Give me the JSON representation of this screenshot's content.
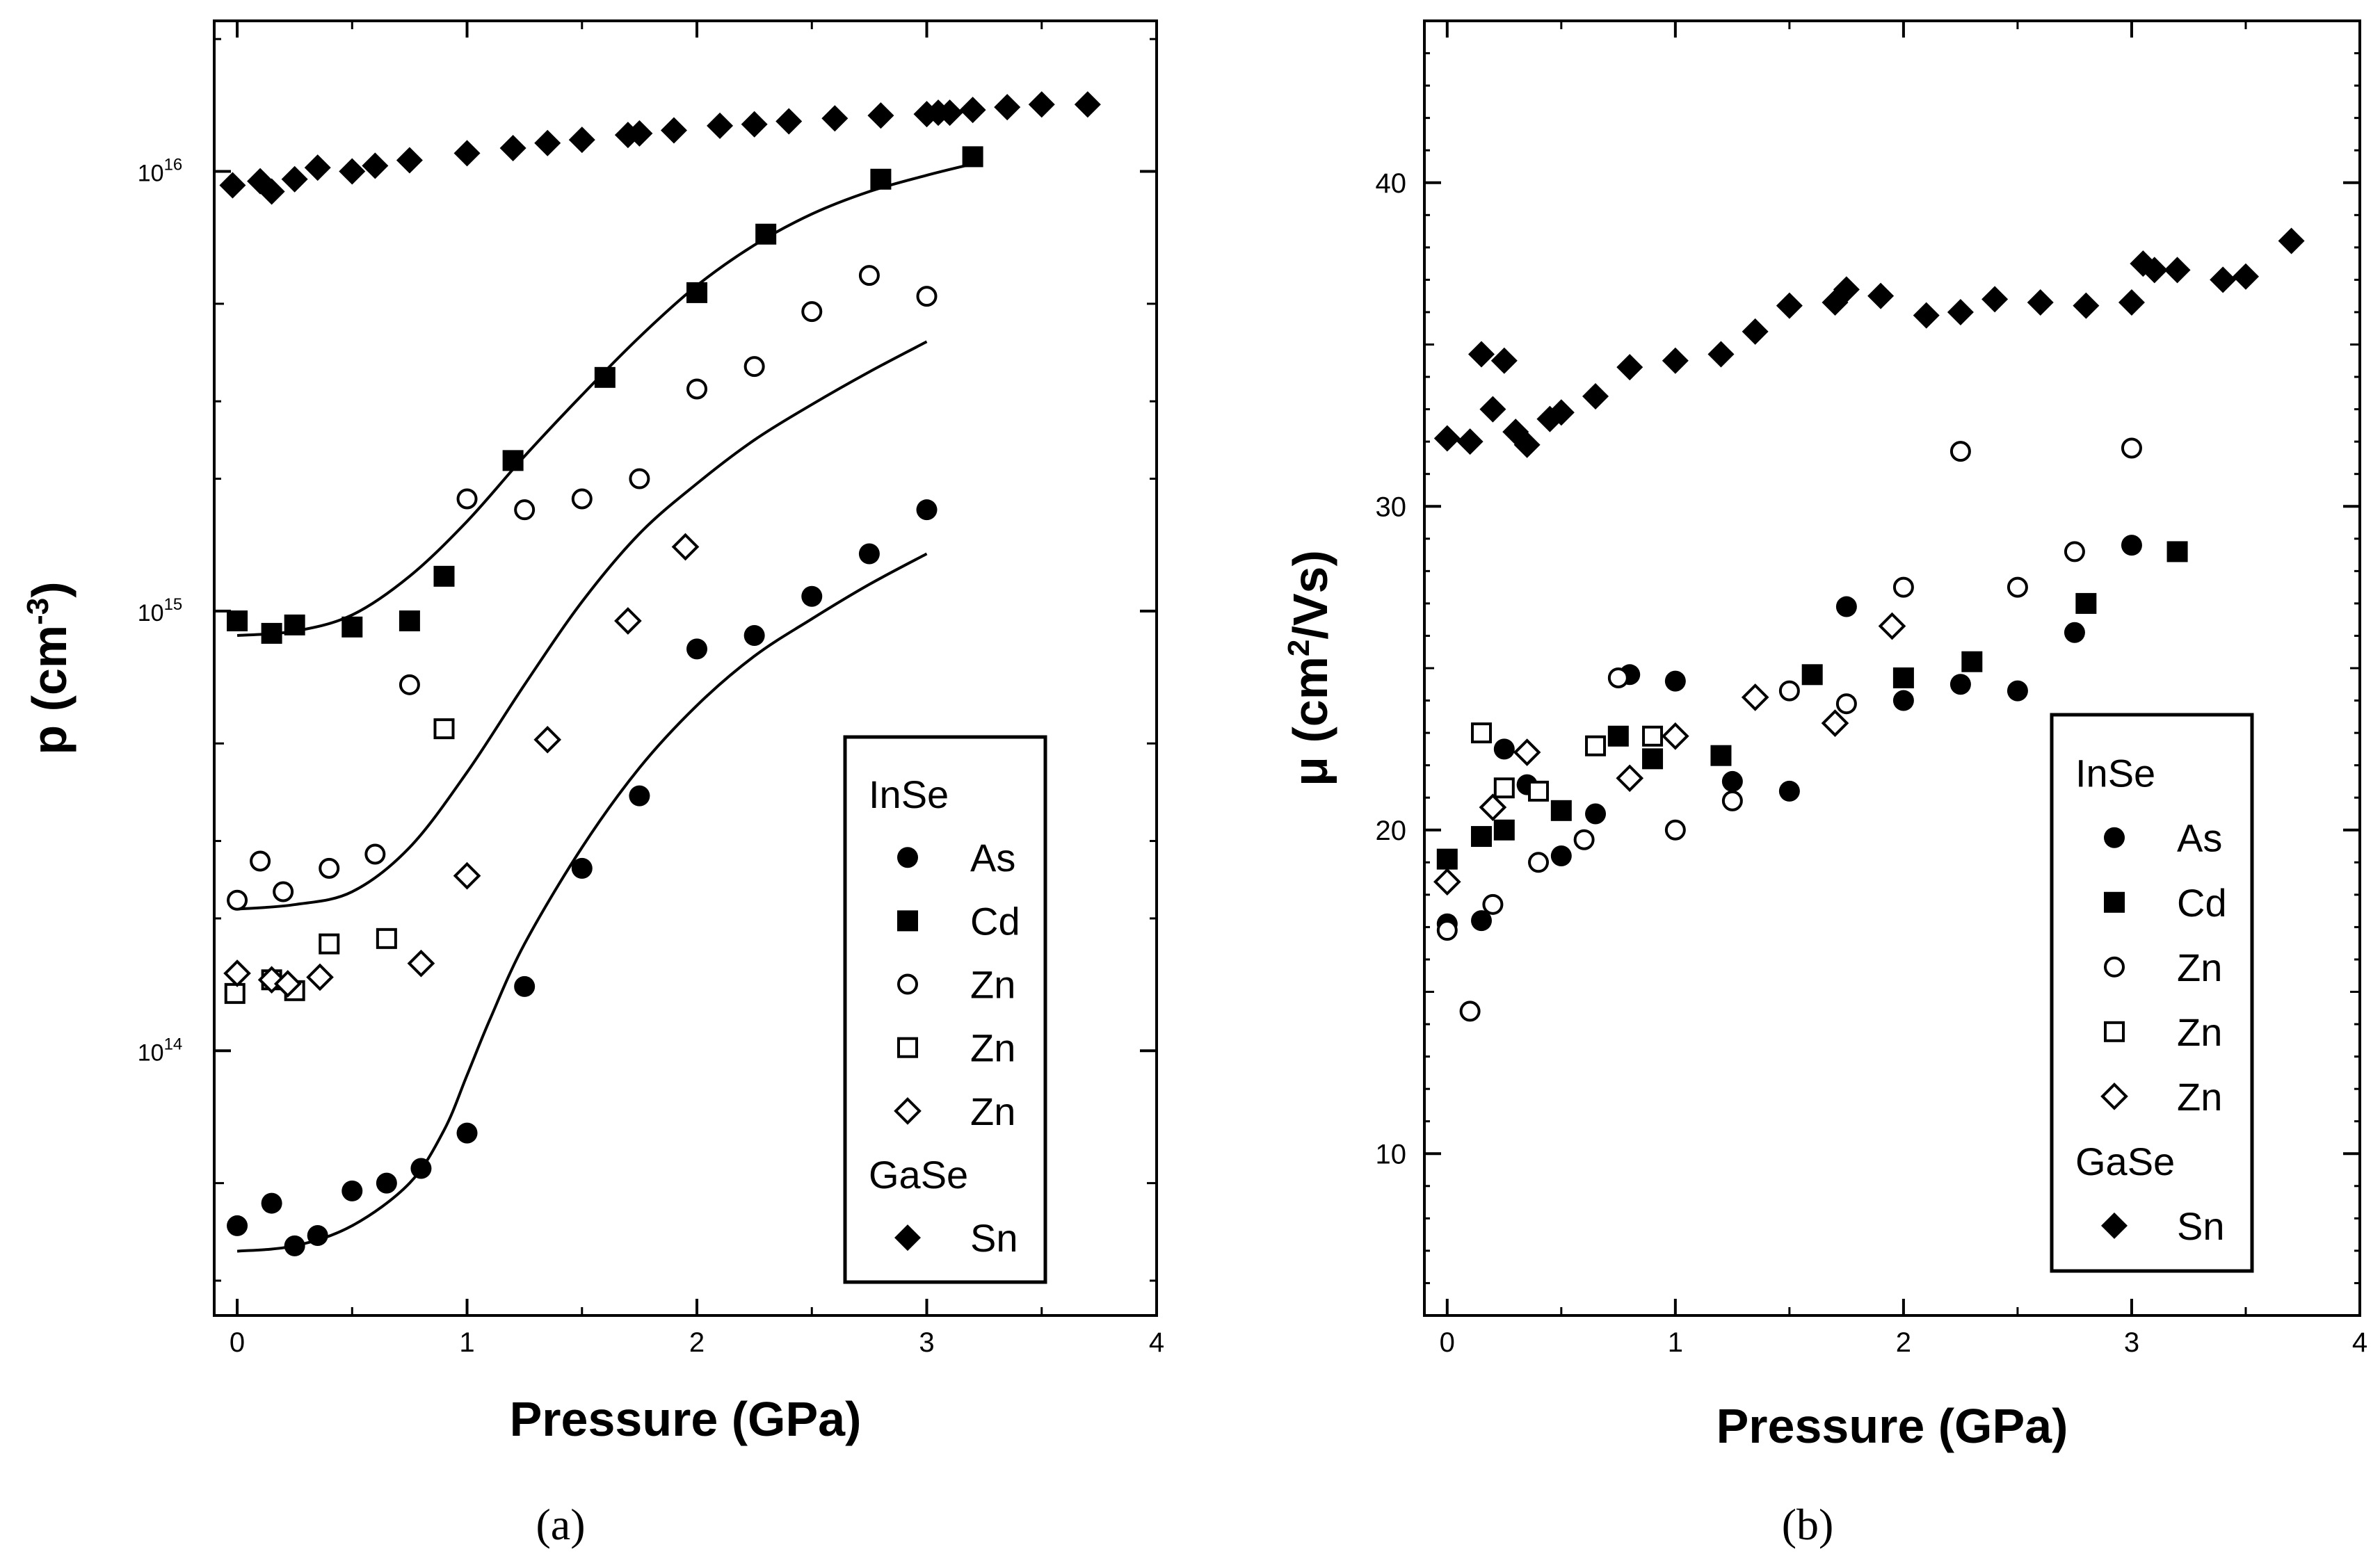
{
  "chart_data": [
    {
      "panel": "(a)",
      "type": "scatter",
      "xlabel": "Pressure (GPa)",
      "ylabel": "p (cm-3)",
      "ylabel_base": "p (cm",
      "ylabel_sup": "-3",
      "ylabel_close": ")",
      "yscale": "log",
      "xlim": [
        -0.1,
        4.0
      ],
      "ylim": [
        25000000000000.0,
        2.2e+16
      ],
      "xticks": [
        0,
        1,
        2,
        3,
        4
      ],
      "xtick_labels": [
        "0",
        "1",
        "2",
        "3",
        "4"
      ],
      "yticks": [
        100000000000000.0,
        1000000000000000.0,
        1e+16
      ],
      "ytick_labels": [
        {
          "base": "10",
          "exp": "14"
        },
        {
          "base": "10",
          "exp": "15"
        },
        {
          "base": "10",
          "exp": "16"
        }
      ],
      "legend": {
        "position": "bottom-right",
        "entries": [
          {
            "type": "header",
            "text": "InSe"
          },
          {
            "type": "item",
            "marker": "filled-circle",
            "text": "As"
          },
          {
            "type": "item",
            "marker": "filled-square",
            "text": "Cd"
          },
          {
            "type": "item",
            "marker": "open-circle",
            "text": "Zn"
          },
          {
            "type": "item",
            "marker": "open-square",
            "text": "Zn"
          },
          {
            "type": "item",
            "marker": "open-diamond",
            "text": "Zn"
          },
          {
            "type": "header",
            "text": "GaSe"
          },
          {
            "type": "item",
            "marker": "filled-diamond",
            "text": "Sn"
          }
        ]
      },
      "series": [
        {
          "name": "InSe As",
          "marker": "filled-circle",
          "x": [
            0,
            0.15,
            0.25,
            0.35,
            0.5,
            0.65,
            0.8,
            1.0,
            1.25,
            1.5,
            1.75,
            2.0,
            2.25,
            2.5,
            2.75,
            3.0
          ],
          "y": [
            40000000000000.0,
            45000000000000.0,
            36000000000000.0,
            38000000000000.0,
            48000000000000.0,
            50000000000000.0,
            54000000000000.0,
            65000000000000.0,
            140000000000000.0,
            260000000000000.0,
            380000000000000.0,
            820000000000000.0,
            880000000000000.0,
            1080000000000000.0,
            1350000000000000.0,
            1700000000000000.0
          ]
        },
        {
          "name": "InSe Cd",
          "marker": "filled-square",
          "x": [
            0,
            0.15,
            0.25,
            0.5,
            0.75,
            0.9,
            1.2,
            1.6,
            2.0,
            2.3,
            2.8,
            3.2
          ],
          "y": [
            950000000000000.0,
            890000000000000.0,
            930000000000000.0,
            920000000000000.0,
            950000000000000.0,
            1200000000000000.0,
            2200000000000000.0,
            3400000000000000.0,
            5300000000000000.0,
            7200000000000000.0,
            9600000000000000.0,
            1.08e+16
          ]
        },
        {
          "name": "InSe Zn (circle)",
          "marker": "open-circle",
          "x": [
            0,
            0.1,
            0.2,
            0.4,
            0.6,
            0.75,
            1.0,
            1.25,
            1.5,
            1.75,
            2.0,
            2.25,
            2.5,
            2.75,
            3.0
          ],
          "y": [
            220000000000000.0,
            270000000000000.0,
            230000000000000.0,
            260000000000000.0,
            280000000000000.0,
            680000000000000.0,
            1800000000000000.0,
            1700000000000000.0,
            1800000000000000.0,
            2000000000000000.0,
            3200000000000000.0,
            3600000000000000.0,
            4800000000000000.0,
            5800000000000000.0,
            5200000000000000.0
          ]
        },
        {
          "name": "InSe Zn (square)",
          "marker": "open-square",
          "x": [
            -0.01,
            0.15,
            0.25,
            0.4,
            0.65,
            0.9
          ],
          "y": [
            135000000000000.0,
            145000000000000.0,
            137000000000000.0,
            175000000000000.0,
            180000000000000.0,
            540000000000000.0
          ]
        },
        {
          "name": "InSe Zn (diamond)",
          "marker": "open-diamond",
          "x": [
            0,
            0.15,
            0.22,
            0.36,
            0.8,
            1.0,
            1.35,
            1.7,
            1.95
          ],
          "y": [
            150000000000000.0,
            145000000000000.0,
            142000000000000.0,
            147000000000000.0,
            158000000000000.0,
            250000000000000.0,
            510000000000000.0,
            950000000000000.0,
            1400000000000000.0
          ]
        },
        {
          "name": "GaSe Sn",
          "marker": "filled-diamond",
          "x": [
            -0.02,
            0.1,
            0.15,
            0.25,
            0.35,
            0.5,
            0.6,
            0.75,
            1.0,
            1.2,
            1.35,
            1.5,
            1.7,
            1.75,
            1.9,
            2.1,
            2.25,
            2.4,
            2.6,
            2.8,
            3.0,
            3.05,
            3.1,
            3.2,
            3.35,
            3.5,
            3.7
          ],
          "y": [
            9300000000000000.0,
            9500000000000000.0,
            9000000000000000.0,
            9600000000000000.0,
            1.02e+16,
            1e+16,
            1.03e+16,
            1.06e+16,
            1.1e+16,
            1.13e+16,
            1.16e+16,
            1.18e+16,
            1.21e+16,
            1.22e+16,
            1.24e+16,
            1.27e+16,
            1.28e+16,
            1.3e+16,
            1.32e+16,
            1.34e+16,
            1.35e+16,
            1.36e+16,
            1.36e+16,
            1.38e+16,
            1.4e+16,
            1.42e+16,
            1.42e+16
          ]
        }
      ],
      "fits": [
        {
          "name": "fit Cd",
          "x": [
            0,
            0.25,
            0.5,
            0.75,
            1.0,
            1.25,
            1.5,
            1.75,
            2.0,
            2.25,
            2.5,
            2.75,
            3.0,
            3.2
          ],
          "y": [
            880000000000000.0,
            900000000000000.0,
            980000000000000.0,
            1200000000000000.0,
            1600000000000000.0,
            2250000000000000.0,
            3100000000000000.0,
            4200000000000000.0,
            5500000000000000.0,
            6800000000000000.0,
            8000000000000000.0,
            9000000000000000.0,
            9800000000000000.0,
            1.04e+16
          ]
        },
        {
          "name": "fit Zn",
          "x": [
            0,
            0.25,
            0.5,
            0.75,
            1.0,
            1.25,
            1.5,
            1.75,
            2.0,
            2.25,
            2.5,
            2.75,
            3.0
          ],
          "y": [
            210000000000000.0,
            215000000000000.0,
            230000000000000.0,
            290000000000000.0,
            430000000000000.0,
            680000000000000.0,
            1050000000000000.0,
            1500000000000000.0,
            1950000000000000.0,
            2450000000000000.0,
            2950000000000000.0,
            3500000000000000.0,
            4100000000000000.0
          ]
        },
        {
          "name": "fit As",
          "x": [
            0,
            0.25,
            0.5,
            0.75,
            0.9,
            1.0,
            1.1,
            1.25,
            1.5,
            1.75,
            2.0,
            2.25,
            2.5,
            2.75,
            3.0
          ],
          "y": [
            35000000000000.0,
            36000000000000.0,
            40000000000000.0,
            50000000000000.0,
            66000000000000.0,
            88000000000000.0,
            118000000000000.0,
            175000000000000.0,
            290000000000000.0,
            440000000000000.0,
            610000000000000.0,
            790000000000000.0,
            960000000000000.0,
            1150000000000000.0,
            1350000000000000.0
          ]
        }
      ]
    },
    {
      "panel": "(b)",
      "type": "scatter",
      "xlabel": "Pressure (GPa)",
      "ylabel": "μ (cm2/Vs)",
      "ylabel_base": "μ (cm",
      "ylabel_sup": "2",
      "ylabel_close": "/Vs)",
      "yscale": "linear",
      "xlim": [
        -0.1,
        4.0
      ],
      "ylim": [
        5,
        45
      ],
      "xticks": [
        0,
        1,
        2,
        3,
        4
      ],
      "xtick_labels": [
        "0",
        "1",
        "2",
        "3",
        "4"
      ],
      "yticks": [
        10,
        20,
        30,
        40
      ],
      "ytick_labels": [
        "10",
        "20",
        "30",
        "40"
      ],
      "legend": {
        "position": "bottom-right",
        "entries": [
          {
            "type": "header",
            "text": "InSe"
          },
          {
            "type": "item",
            "marker": "filled-circle",
            "text": "As"
          },
          {
            "type": "item",
            "marker": "filled-square",
            "text": "Cd"
          },
          {
            "type": "item",
            "marker": "open-circle",
            "text": "Zn"
          },
          {
            "type": "item",
            "marker": "open-square",
            "text": "Zn"
          },
          {
            "type": "item",
            "marker": "open-diamond",
            "text": "Zn"
          },
          {
            "type": "header",
            "text": "GaSe"
          },
          {
            "type": "item",
            "marker": "filled-diamond",
            "text": "Sn"
          }
        ]
      },
      "series": [
        {
          "name": "InSe As",
          "marker": "filled-circle",
          "x": [
            0,
            0.15,
            0.25,
            0.35,
            0.5,
            0.65,
            0.8,
            1.0,
            1.25,
            1.5,
            1.75,
            2.0,
            2.25,
            2.5,
            2.75,
            3.0
          ],
          "y": [
            17.1,
            17.2,
            22.5,
            21.4,
            19.2,
            20.5,
            24.8,
            24.6,
            21.5,
            21.2,
            26.9,
            24.0,
            24.5,
            24.3,
            26.1,
            28.8
          ]
        },
        {
          "name": "InSe Cd",
          "marker": "filled-square",
          "x": [
            0,
            0.15,
            0.25,
            0.5,
            0.75,
            0.9,
            1.2,
            1.6,
            2.0,
            2.3,
            2.8,
            3.2
          ],
          "y": [
            19.1,
            19.8,
            20.0,
            20.6,
            22.9,
            22.2,
            22.3,
            24.8,
            24.7,
            25.2,
            27.0,
            28.6
          ]
        },
        {
          "name": "InSe Zn (circle)",
          "marker": "open-circle",
          "x": [
            0,
            0.1,
            0.2,
            0.4,
            0.6,
            0.75,
            1.0,
            1.25,
            1.5,
            1.75,
            2.0,
            2.25,
            2.5,
            2.75,
            3.0
          ],
          "y": [
            16.9,
            14.4,
            17.7,
            19.0,
            19.7,
            24.7,
            20.0,
            20.9,
            24.3,
            23.9,
            27.5,
            31.7,
            27.5,
            28.6,
            31.8
          ]
        },
        {
          "name": "InSe Zn (square)",
          "marker": "open-square",
          "x": [
            0.15,
            0.25,
            0.4,
            0.65,
            0.9
          ],
          "y": [
            23.0,
            21.3,
            21.2,
            22.6,
            22.9
          ]
        },
        {
          "name": "InSe Zn (diamond)",
          "marker": "open-diamond",
          "x": [
            0,
            0.2,
            0.35,
            0.8,
            1.0,
            1.35,
            1.7,
            1.95
          ],
          "y": [
            18.4,
            20.7,
            22.4,
            21.6,
            22.9,
            24.1,
            23.3,
            26.3
          ]
        },
        {
          "name": "GaSe Sn",
          "marker": "filled-diamond",
          "x": [
            0,
            0.1,
            0.15,
            0.2,
            0.25,
            0.3,
            0.35,
            0.45,
            0.5,
            0.65,
            0.8,
            1.0,
            1.2,
            1.35,
            1.5,
            1.7,
            1.75,
            1.9,
            2.1,
            2.25,
            2.4,
            2.6,
            2.8,
            3.0,
            3.05,
            3.1,
            3.2,
            3.4,
            3.5,
            3.7
          ],
          "y": [
            32.1,
            32.0,
            34.7,
            33.0,
            34.5,
            32.3,
            31.9,
            32.7,
            32.9,
            33.4,
            34.3,
            34.5,
            34.7,
            35.4,
            36.2,
            36.3,
            36.7,
            36.5,
            35.9,
            36.0,
            36.4,
            36.3,
            36.2,
            36.3,
            37.5,
            37.3,
            37.3,
            37.0,
            37.1,
            38.2
          ]
        }
      ]
    }
  ],
  "panel_labels": [
    "(a)",
    "(b)"
  ]
}
